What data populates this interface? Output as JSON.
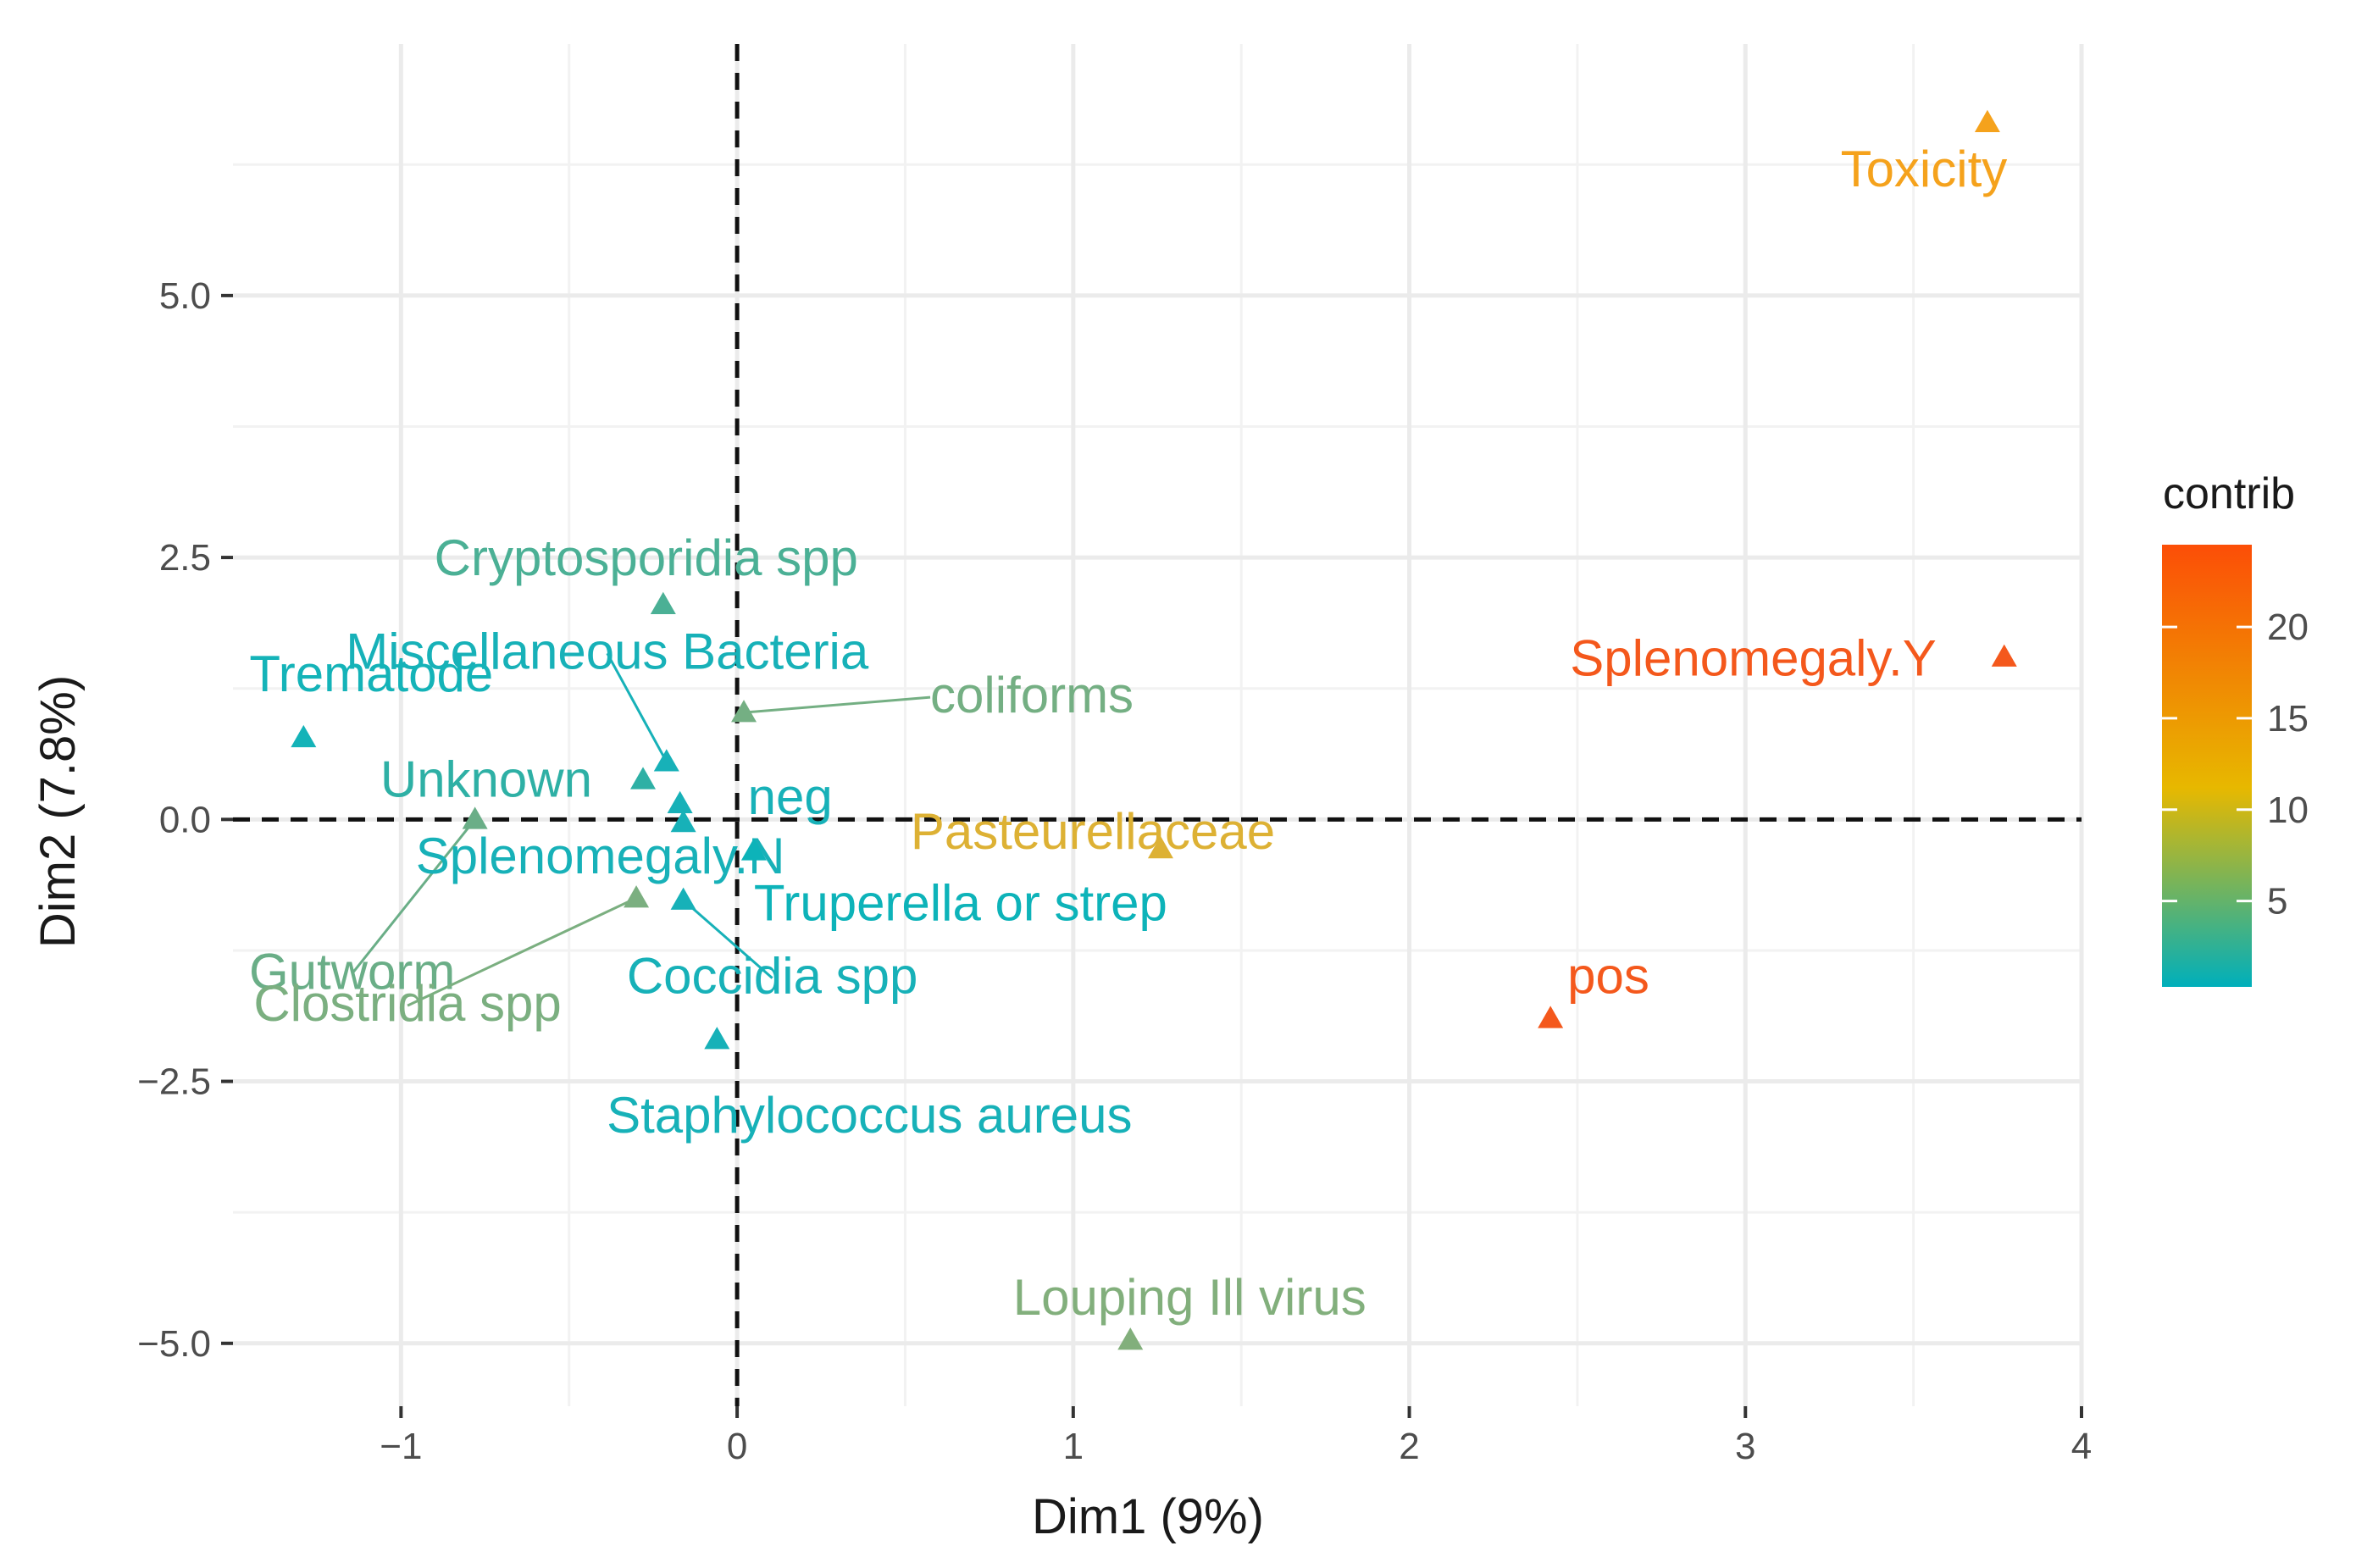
{
  "chart_data": {
    "type": "scatter",
    "title": "",
    "xlabel": "Dim1 (9%)",
    "ylabel": "Dim2 (7.8%)",
    "xlim": [
      -1.5,
      4.0
    ],
    "ylim": [
      -5.6,
      7.4
    ],
    "xticks": [
      -1,
      0,
      1,
      2,
      3,
      4
    ],
    "xtick_labels": [
      "−1",
      "0",
      "1",
      "2",
      "3",
      "4"
    ],
    "yticks": [
      -5.0,
      -2.5,
      0.0,
      2.5,
      5.0
    ],
    "ytick_labels": [
      "−5.0",
      "−2.5",
      "0.0",
      "2.5",
      "5.0"
    ],
    "grid": true,
    "reference_lines": {
      "x": 0,
      "y": 0,
      "style": "dashed"
    },
    "marker": "triangle",
    "points": [
      {
        "label": "Toxicity",
        "x": 3.72,
        "y": 6.65,
        "contrib": 13,
        "color": "#F5A21C"
      },
      {
        "label": "Splenomegaly.Y",
        "x": 3.77,
        "y": 1.55,
        "contrib": 23,
        "color": "#F4581C"
      },
      {
        "label": "pos",
        "x": 2.42,
        "y": -1.9,
        "contrib": 22,
        "color": "#F4581C"
      },
      {
        "label": "Pasteurellaceae",
        "x": 1.26,
        "y": -0.28,
        "contrib": 11,
        "color": "#DDB134"
      },
      {
        "label": "Louping Ill virus",
        "x": 1.17,
        "y": -4.97,
        "contrib": 6,
        "color": "#82AF7C"
      },
      {
        "label": "Cryptosporidia spp",
        "x": -0.22,
        "y": 2.05,
        "contrib": 3,
        "color": "#4BB095"
      },
      {
        "label": "Miscellaneous Bacteria",
        "x": -0.21,
        "y": 0.55,
        "contrib": 0.5,
        "color": "#17B1B8"
      },
      {
        "label": "coliforms",
        "x": 0.02,
        "y": 1.02,
        "contrib": 4,
        "color": "#74AF83"
      },
      {
        "label": "Trematode",
        "x": -1.29,
        "y": 0.78,
        "contrib": 0.6,
        "color": "#14B3B8"
      },
      {
        "label": "Unknown",
        "x": -0.28,
        "y": 0.38,
        "contrib": 1,
        "color": "#2EB0A5"
      },
      {
        "label": "neg",
        "x": -0.17,
        "y": 0.15,
        "contrib": 0.5,
        "color": "#17B1B8"
      },
      {
        "label": "Gutworm",
        "x": -0.78,
        "y": 0.0,
        "contrib": 4,
        "color": "#6AAE87"
      },
      {
        "label": "Splenomegaly.N",
        "x": -0.16,
        "y": -0.03,
        "contrib": 0.5,
        "color": "#17B1B8"
      },
      {
        "label": "Truperella or strep",
        "x": 0.05,
        "y": -0.3,
        "contrib": 0.5,
        "color": "#0DB3B9"
      },
      {
        "label": "Clostridia spp",
        "x": -0.3,
        "y": -0.75,
        "contrib": 5,
        "color": "#7BAF80"
      },
      {
        "label": "Coccidia spp",
        "x": -0.16,
        "y": -0.77,
        "contrib": 0.5,
        "color": "#17B1B8"
      },
      {
        "label": "Staphylococcus aureus",
        "x": -0.06,
        "y": -2.1,
        "contrib": 0.5,
        "color": "#17B1B8"
      }
    ],
    "legend": {
      "title": "contrib",
      "position": "right",
      "ticks": [
        5,
        10,
        15,
        20
      ],
      "range": [
        0.3,
        24.5
      ],
      "gradient": [
        "#00AFBB",
        "#E7B800",
        "#FC4E07"
      ]
    }
  }
}
